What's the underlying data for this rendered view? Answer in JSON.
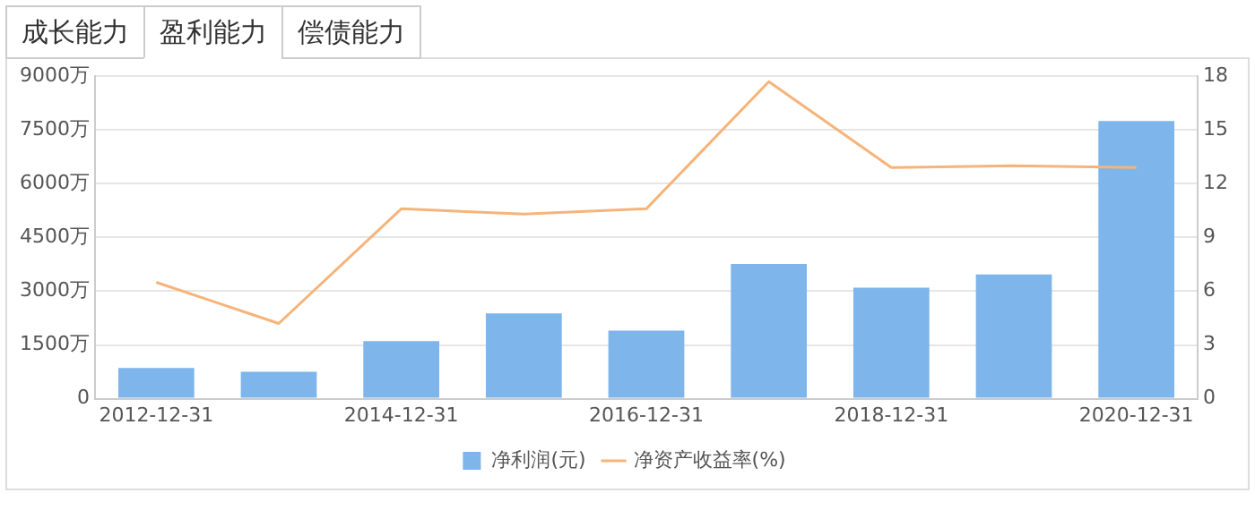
{
  "chart_data": {
    "type": "bar",
    "annotations": [
      "成长能力",
      "盈利能力",
      "偿债能力"
    ],
    "categories": [
      "2012-12-31",
      null,
      "2014-12-31",
      null,
      "2016-12-31",
      null,
      "2018-12-31",
      null,
      "2020-12-31"
    ],
    "series": [
      {
        "name": "净利润(元)",
        "color": "#7eb5ea",
        "values": [
          860,
          750,
          1610,
          2380,
          1900,
          3760,
          3100,
          3470,
          7750
        ]
      },
      {
        "name": "净资产收益率(%)",
        "type": "line",
        "axis": "y2",
        "color": "#f6b47a",
        "values": [
          6.5,
          4.2,
          10.6,
          10.3,
          10.6,
          17.7,
          12.9,
          13.0,
          12.9
        ]
      }
    ],
    "ylim": [
      0,
      9000
    ],
    "yticks": [
      0,
      {
        "value": 1500,
        "label": "1500万"
      },
      {
        "value": 3000,
        "label": "3000万"
      },
      {
        "value": 4500,
        "label": "4500万"
      },
      {
        "value": 6000,
        "label": "6000万"
      },
      {
        "value": 7500,
        "label": "7500万"
      },
      {
        "value": 9000,
        "label": "9000万"
      }
    ],
    "y2lim": [
      0,
      18
    ],
    "y2ticks": [
      0,
      3,
      6,
      9,
      12,
      15,
      18
    ],
    "grid": "y",
    "legend": "bottom",
    "marker": "none",
    "line_style": "solid"
  }
}
